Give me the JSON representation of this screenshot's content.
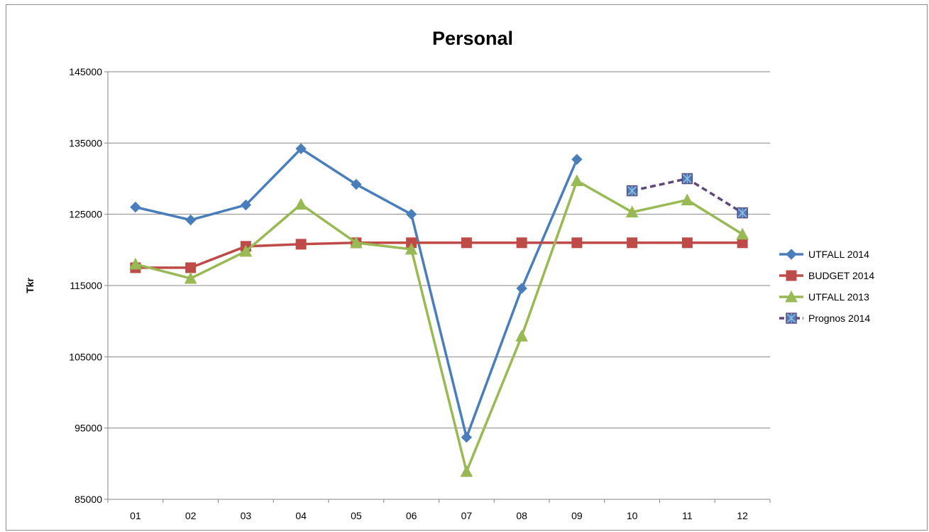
{
  "chart_data": {
    "type": "line",
    "title": "Personal",
    "xlabel": "",
    "ylabel": "Tkr",
    "categories": [
      "01",
      "02",
      "03",
      "04",
      "05",
      "06",
      "07",
      "08",
      "09",
      "10",
      "11",
      "12"
    ],
    "ylim": [
      85000,
      145000
    ],
    "yticks": [
      85000,
      95000,
      105000,
      115000,
      125000,
      135000,
      145000
    ],
    "ytick_labels": [
      "85000",
      "95000",
      "105000",
      "115000",
      "125000",
      "135000",
      "145000"
    ],
    "grid": true,
    "legend_position": "right",
    "series": [
      {
        "name": "UTFALL 2014",
        "color": "#4a7ebb",
        "marker": "diamond",
        "dash": "solid",
        "values": [
          126000,
          124200,
          126300,
          134200,
          129200,
          125000,
          93700,
          114600,
          132700,
          null,
          null,
          null
        ]
      },
      {
        "name": "BUDGET 2014",
        "color": "#be4b48",
        "marker": "square",
        "dash": "solid",
        "values": [
          117500,
          117500,
          120500,
          120800,
          121000,
          121000,
          121000,
          121000,
          121000,
          121000,
          121000,
          121000
        ]
      },
      {
        "name": "UTFALL 2013",
        "color": "#98b954",
        "marker": "triangle",
        "dash": "solid",
        "values": [
          118000,
          116000,
          119800,
          126400,
          121000,
          120100,
          88900,
          107900,
          129700,
          125300,
          127000,
          122200
        ]
      },
      {
        "name": "Prognos 2014",
        "color": "#5e4a7a",
        "marker": "x-square",
        "marker_fill": "#4a7ebb",
        "dash": "dashed",
        "values": [
          null,
          null,
          null,
          null,
          null,
          null,
          null,
          null,
          null,
          128300,
          130000,
          125200
        ]
      }
    ]
  }
}
